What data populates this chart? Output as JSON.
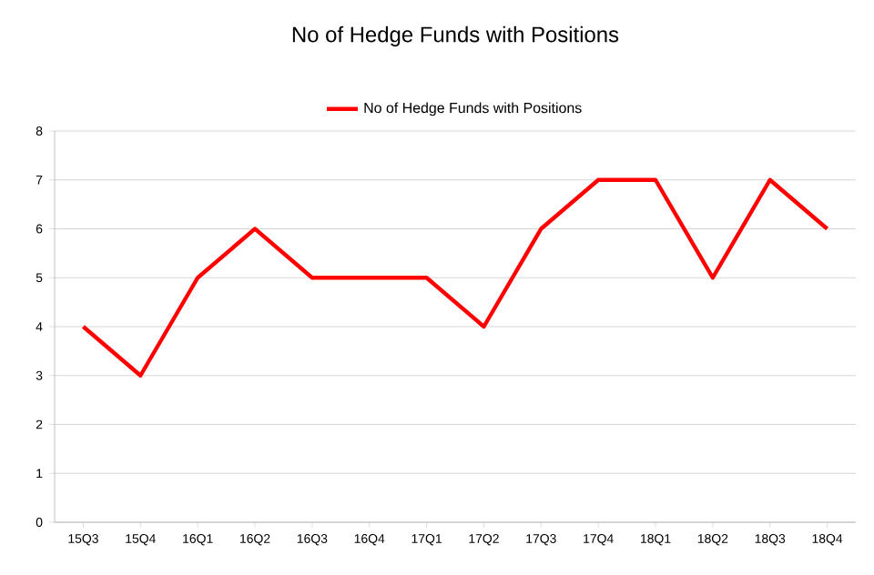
{
  "chart_data": {
    "type": "line",
    "title": "No of Hedge Funds with Positions",
    "categories": [
      "15Q3",
      "15Q4",
      "16Q1",
      "16Q2",
      "16Q3",
      "16Q4",
      "17Q1",
      "17Q2",
      "17Q3",
      "17Q4",
      "18Q1",
      "18Q2",
      "18Q3",
      "18Q4"
    ],
    "series": [
      {
        "name": "No of Hedge Funds with Positions",
        "color": "#ff0000",
        "values": [
          4,
          3,
          5,
          6,
          5,
          5,
          5,
          4,
          6,
          7,
          7,
          5,
          7,
          6
        ]
      }
    ],
    "ylim": [
      0,
      8
    ],
    "yticks": [
      0,
      1,
      2,
      3,
      4,
      5,
      6,
      7,
      8
    ],
    "grid": "y",
    "legend": "top",
    "marker": "none",
    "line_style": "solid"
  }
}
